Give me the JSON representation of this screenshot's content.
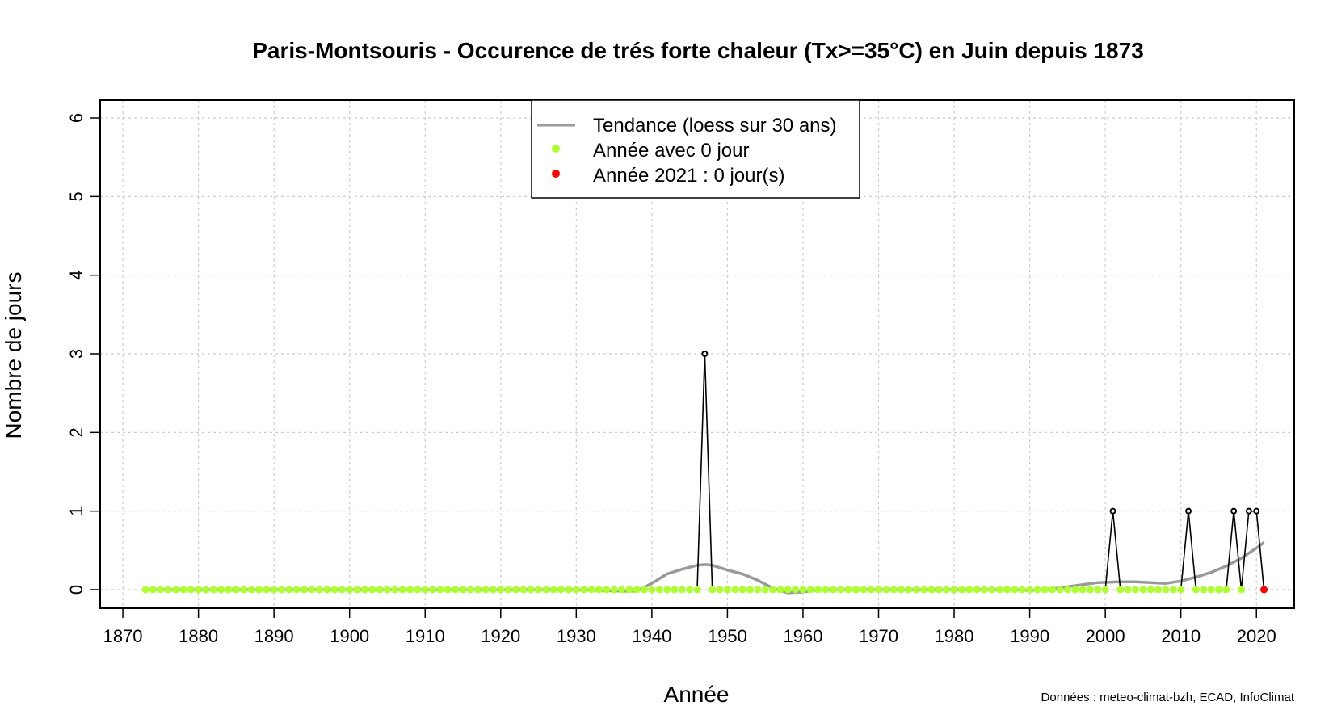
{
  "chart_data": {
    "type": "line",
    "title": "Paris-Montsouris - Occurence de trés forte chaleur (Tx>=35°C) en Juin depuis 1873",
    "xlabel": "Année",
    "ylabel": "Nombre de jours",
    "xlim": [
      1873,
      2021
    ],
    "ylim": [
      0,
      6
    ],
    "x_ticks": [
      "1870",
      "1880",
      "1890",
      "1900",
      "1910",
      "1920",
      "1930",
      "1940",
      "1950",
      "1960",
      "1970",
      "1980",
      "1990",
      "2000",
      "2010",
      "2020"
    ],
    "y_ticks": [
      "0",
      "1",
      "2",
      "3",
      "4",
      "5",
      "6"
    ],
    "grid": true,
    "legend_position": "top-center",
    "legend": {
      "trend": "Tendance (loess sur 30 ans)",
      "zero": "Année avec 0 jour",
      "current": "Année 2021 : 0 jour(s)"
    },
    "colors": {
      "observed": "#000000",
      "trend": "#999999",
      "zero": "#adff2f",
      "current": "#ff0000",
      "grid": "#cccccc"
    },
    "series": [
      {
        "name": "",
        "x_start": 1873,
        "x_end": 2021,
        "nonzero_years": {
          "1947": 3,
          "2001": 1,
          "2011": 1,
          "2017": 1,
          "2019": 1,
          "2020": 1
        }
      },
      {
        "name": "Tendance (loess sur 30 ans)",
        "x": [
          1873,
          1880,
          1890,
          1900,
          1910,
          1920,
          1925,
          1930,
          1933,
          1936,
          1938,
          1940,
          1942,
          1944,
          1946,
          1947,
          1948,
          1950,
          1952,
          1954,
          1956,
          1958,
          1960,
          1962,
          1966,
          1970,
          1980,
          1988,
          1990,
          1993,
          1996,
          1999,
          2002,
          2004,
          2006,
          2008,
          2010,
          2012,
          2014,
          2016,
          2018,
          2020,
          2021
        ],
        "values": [
          0,
          0,
          0,
          0,
          0,
          0,
          0,
          0,
          -0.01,
          -0.02,
          -0.02,
          0.08,
          0.2,
          0.26,
          0.31,
          0.32,
          0.31,
          0.25,
          0.2,
          0.12,
          0.02,
          -0.04,
          -0.03,
          0,
          0,
          0,
          0,
          0,
          -0.01,
          0.01,
          0.05,
          0.09,
          0.1,
          0.1,
          0.09,
          0.08,
          0.11,
          0.16,
          0.22,
          0.3,
          0.4,
          0.53,
          0.6
        ]
      }
    ],
    "current_year": 2021,
    "current_value": 0,
    "credit": "Données : meteo-climat-bzh, ECAD, InfoClimat"
  }
}
